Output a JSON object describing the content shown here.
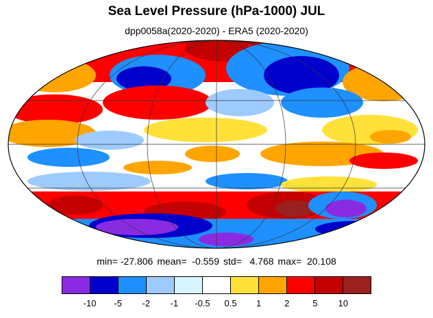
{
  "header": {
    "title": "Sea Level Pressure (hPa-1000) JUL",
    "subtitle": "dpp0058a(2020-2020) - ERA5 (2020-2020)"
  },
  "stats": {
    "min": "min= -27.806",
    "mean": "mean=  -0.559",
    "std": "std=   4.768",
    "max": "max=  20.108"
  },
  "colorbar": {
    "colors": [
      "#8a2be2",
      "#0000cd",
      "#1e90ff",
      "#9ecbff",
      "#d6f5ff",
      "#ffffff",
      "#ffe13a",
      "#ffa500",
      "#ff0000",
      "#c40000",
      "#9b2020"
    ],
    "tick_labels": [
      "-10",
      "-5",
      "-2",
      "-1",
      "-0.5",
      "0.5",
      "1",
      "2",
      "5",
      "10"
    ]
  }
}
